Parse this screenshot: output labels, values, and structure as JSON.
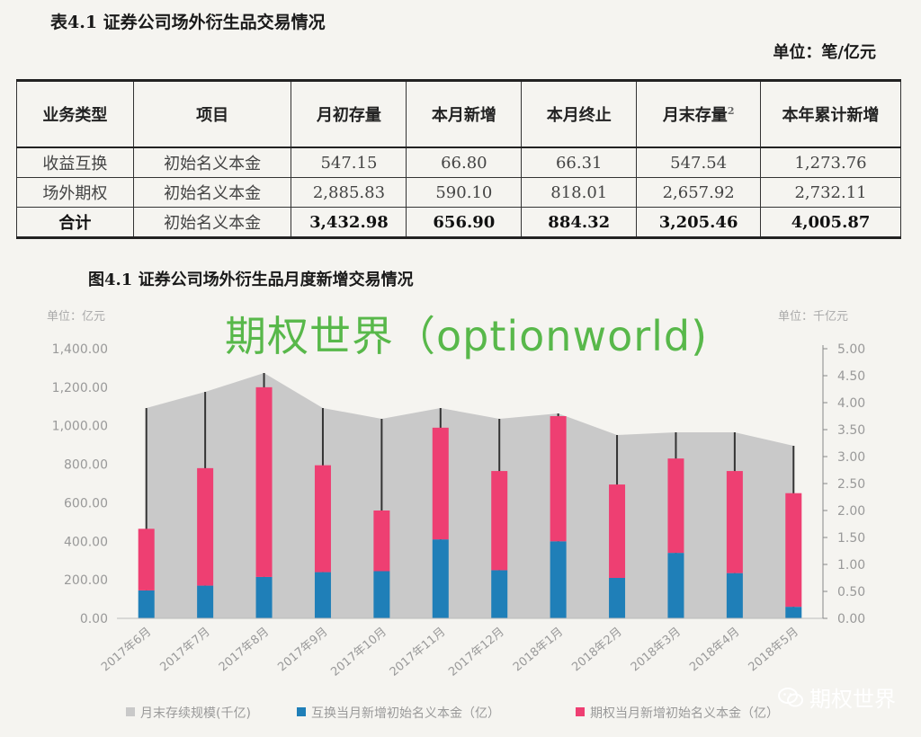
{
  "table": {
    "title": "表4.1 证券公司场外衍生品交易情况",
    "unit": "单位：笔/亿元",
    "headers": [
      "业务类型",
      "项目",
      "月初存量",
      "本月新增",
      "本月终止",
      "月末存量",
      "本年累计新增"
    ],
    "header_superscript": "2",
    "rows": [
      [
        "收益互换",
        "初始名义本金",
        "547.15",
        "66.80",
        "66.31",
        "547.54",
        "1,273.76"
      ],
      [
        "场外期权",
        "初始名义本金",
        "2,885.83",
        "590.10",
        "818.01",
        "2,657.92",
        "2,732.11"
      ],
      [
        "合计",
        "初始名义本金",
        "3,432.98",
        "656.90",
        "884.32",
        "3,205.46",
        "4,005.87"
      ]
    ]
  },
  "figure_title": "图4.1 证券公司场外衍生品月度新增交易情况",
  "watermark": {
    "main": "期权世界（optionworld)",
    "corner": "期权世界",
    "corner_icon": "wechat-icon"
  },
  "chart_data": {
    "type": "bar",
    "title": "图4.1 证券公司场外衍生品月度新增交易情况",
    "left_unit": "单位：亿元",
    "right_unit": "单位：千亿元",
    "categories": [
      "2017年6月",
      "2017年7月",
      "2017年8月",
      "2017年9月",
      "2017年10月",
      "2017年11月",
      "2017年12月",
      "2018年1月",
      "2018年2月",
      "2018年3月",
      "2018年4月",
      "2018年5月"
    ],
    "series": [
      {
        "name": "月末存续规模(千亿)",
        "type": "area",
        "axis": "right",
        "color": "#c9c9c9",
        "values": [
          3.9,
          4.2,
          4.55,
          3.9,
          3.7,
          3.9,
          3.7,
          3.8,
          3.4,
          3.45,
          3.45,
          3.2
        ]
      },
      {
        "name": "互换当月新增初始名义本金（亿）",
        "type": "bar",
        "stack": "new",
        "axis": "left",
        "color": "#1f7fb8",
        "values": [
          145,
          170,
          215,
          240,
          245,
          410,
          250,
          400,
          210,
          340,
          235,
          60
        ]
      },
      {
        "name": "期权当月新增初始名义本金（亿）",
        "type": "bar",
        "stack": "new",
        "axis": "left",
        "color": "#ee3f72",
        "values": [
          320,
          610,
          985,
          555,
          315,
          580,
          515,
          650,
          485,
          490,
          530,
          590
        ]
      }
    ],
    "ylim_left": [
      0,
      1400
    ],
    "ylim_right": [
      0,
      5
    ],
    "yticks_left": [
      "0.00",
      "200.00",
      "400.00",
      "600.00",
      "800.00",
      "1,000.00",
      "1,200.00",
      "1,400.00"
    ],
    "yticks_right": [
      "0.00",
      "0.50",
      "1.00",
      "1.50",
      "2.00",
      "2.50",
      "3.00",
      "3.50",
      "4.00",
      "4.50",
      "5.00"
    ],
    "legend_position": "bottom",
    "grid": false
  }
}
